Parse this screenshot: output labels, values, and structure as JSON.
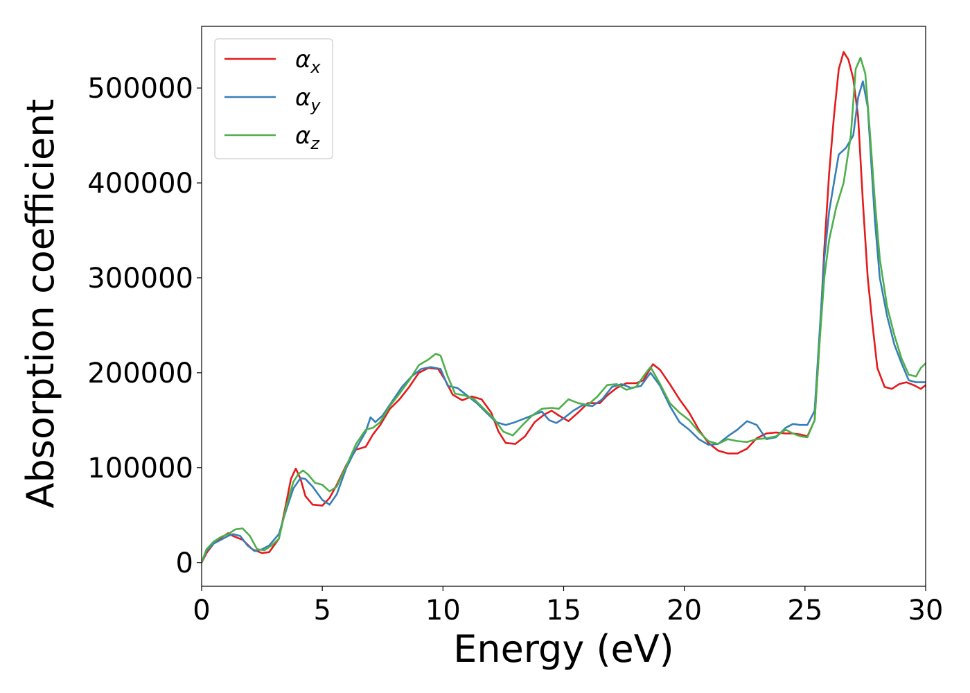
{
  "chart_data": {
    "type": "line",
    "title": "",
    "xlabel": "Energy (eV)",
    "ylabel": "Absorption coefficient",
    "xlim": [
      0,
      30
    ],
    "ylim": [
      -25000,
      565000
    ],
    "xticks": [
      0,
      5,
      10,
      15,
      20,
      25,
      30
    ],
    "yticks": [
      0,
      100000,
      200000,
      300000,
      400000,
      500000
    ],
    "grid": false,
    "legend_position": "top-left",
    "series": [
      {
        "name": "αx",
        "name_base": "α",
        "name_sub": "x",
        "color": "#e41a1c",
        "x": [
          0,
          0.2,
          0.5,
          0.8,
          1.1,
          1.3,
          1.7,
          2.1,
          2.5,
          2.8,
          3.2,
          3.5,
          3.7,
          3.9,
          4.1,
          4.3,
          4.6,
          5.0,
          5.3,
          5.6,
          6.0,
          6.4,
          6.8,
          7.1,
          7.4,
          7.8,
          8.2,
          8.6,
          9.0,
          9.4,
          9.8,
          10.1,
          10.4,
          10.8,
          11.2,
          11.6,
          12.0,
          12.3,
          12.6,
          13.0,
          13.4,
          13.8,
          14.2,
          14.5,
          14.8,
          15.2,
          15.6,
          16.0,
          16.5,
          16.8,
          17.2,
          17.6,
          18.0,
          18.3,
          18.7,
          19.0,
          19.4,
          19.8,
          20.2,
          20.6,
          21.0,
          21.4,
          21.8,
          22.2,
          22.6,
          23.0,
          23.4,
          23.8,
          24.2,
          24.5,
          24.8,
          25.1,
          25.4,
          25.6,
          25.8,
          26.0,
          26.2,
          26.4,
          26.6,
          26.8,
          27.0,
          27.2,
          27.4,
          27.6,
          27.8,
          28.0,
          28.3,
          28.6,
          28.9,
          29.2,
          29.5,
          29.8,
          30.0
        ],
        "values": [
          0,
          10000,
          20000,
          26000,
          31000,
          28000,
          24000,
          14000,
          10000,
          11000,
          25000,
          62000,
          88000,
          99000,
          88000,
          70000,
          61000,
          60000,
          68000,
          82000,
          103000,
          119000,
          122000,
          135000,
          145000,
          162000,
          172000,
          185000,
          200000,
          205000,
          204000,
          192000,
          177000,
          171000,
          175000,
          172000,
          158000,
          138000,
          126000,
          125000,
          133000,
          148000,
          156000,
          160000,
          155000,
          149000,
          158000,
          168000,
          168000,
          176000,
          184000,
          189000,
          189000,
          192000,
          209000,
          203000,
          188000,
          172000,
          158000,
          140000,
          126000,
          118000,
          115000,
          115000,
          120000,
          131000,
          136000,
          137000,
          136000,
          136000,
          135000,
          133000,
          150000,
          230000,
          330000,
          410000,
          470000,
          520000,
          538000,
          530000,
          510000,
          470000,
          380000,
          300000,
          250000,
          205000,
          185000,
          183000,
          188000,
          190000,
          187000,
          183000,
          187000
        ]
      },
      {
        "name": "αy",
        "name_base": "α",
        "name_sub": "y",
        "color": "#377eb8",
        "x": [
          0,
          0.2,
          0.5,
          0.8,
          1.1,
          1.3,
          1.6,
          1.9,
          2.2,
          2.5,
          2.8,
          3.2,
          3.5,
          3.8,
          4.1,
          4.3,
          4.6,
          5.0,
          5.3,
          5.6,
          6.0,
          6.4,
          6.8,
          7.0,
          7.2,
          7.5,
          7.9,
          8.3,
          8.7,
          9.1,
          9.5,
          9.9,
          10.2,
          10.6,
          11.0,
          11.4,
          11.8,
          12.2,
          12.6,
          13.0,
          13.4,
          13.8,
          14.1,
          14.4,
          14.7,
          15.0,
          15.4,
          15.8,
          16.2,
          16.6,
          17.0,
          17.4,
          17.8,
          18.2,
          18.6,
          19.0,
          19.4,
          19.8,
          20.2,
          20.6,
          21.0,
          21.4,
          21.8,
          22.2,
          22.6,
          23.0,
          23.4,
          23.8,
          24.2,
          24.5,
          24.8,
          25.1,
          25.4,
          25.6,
          25.8,
          26.0,
          26.2,
          26.4,
          26.7,
          27.0,
          27.2,
          27.4,
          27.6,
          27.75,
          27.9,
          28.1,
          28.4,
          28.7,
          29.0,
          29.3,
          29.6,
          30.0
        ],
        "values": [
          0,
          12000,
          20000,
          24000,
          28000,
          30000,
          28000,
          18000,
          12000,
          14000,
          18000,
          30000,
          55000,
          78000,
          89000,
          88000,
          80000,
          66000,
          61000,
          72000,
          100000,
          120000,
          138000,
          153000,
          148000,
          155000,
          170000,
          185000,
          196000,
          204000,
          206000,
          204000,
          186000,
          184000,
          176000,
          168000,
          158000,
          148000,
          145000,
          148000,
          152000,
          156000,
          159000,
          150000,
          147000,
          152000,
          160000,
          166000,
          165000,
          172000,
          185000,
          188000,
          184000,
          186000,
          200000,
          186000,
          165000,
          148000,
          140000,
          130000,
          124000,
          125000,
          133000,
          140000,
          149000,
          145000,
          130000,
          132000,
          142000,
          146000,
          145000,
          145000,
          160000,
          240000,
          320000,
          370000,
          400000,
          430000,
          437000,
          450000,
          490000,
          507000,
          480000,
          420000,
          360000,
          300000,
          260000,
          230000,
          210000,
          192000,
          190000,
          190000
        ]
      },
      {
        "name": "αz",
        "name_base": "α",
        "name_sub": "z",
        "color": "#4daf4a",
        "x": [
          0,
          0.2,
          0.5,
          0.8,
          1.1,
          1.4,
          1.7,
          2.0,
          2.3,
          2.6,
          2.9,
          3.2,
          3.5,
          3.8,
          4.0,
          4.2,
          4.4,
          4.7,
          5.0,
          5.3,
          5.6,
          6.0,
          6.4,
          6.8,
          7.1,
          7.4,
          7.8,
          8.2,
          8.6,
          9.0,
          9.4,
          9.7,
          9.9,
          10.2,
          10.5,
          10.9,
          11.3,
          11.7,
          12.1,
          12.5,
          12.9,
          13.3,
          13.7,
          14.1,
          14.5,
          14.8,
          15.2,
          15.6,
          16.0,
          16.4,
          16.8,
          17.2,
          17.6,
          18.0,
          18.3,
          18.6,
          19.0,
          19.4,
          19.8,
          20.2,
          20.6,
          21.0,
          21.4,
          21.8,
          22.2,
          22.6,
          23.0,
          23.4,
          23.8,
          24.2,
          24.5,
          24.8,
          25.1,
          25.4,
          25.6,
          25.8,
          26.0,
          26.3,
          26.6,
          26.9,
          27.1,
          27.3,
          27.5,
          27.7,
          27.9,
          28.1,
          28.4,
          28.7,
          29.0,
          29.3,
          29.6,
          29.8,
          30.0
        ],
        "values": [
          0,
          14000,
          22000,
          27000,
          30000,
          35000,
          36000,
          28000,
          14000,
          13000,
          18000,
          25000,
          58000,
          85000,
          93000,
          97000,
          93000,
          84000,
          82000,
          75000,
          80000,
          102000,
          125000,
          140000,
          142000,
          148000,
          165000,
          178000,
          192000,
          208000,
          214000,
          220000,
          218000,
          196000,
          178000,
          176000,
          172000,
          162000,
          152000,
          138000,
          134000,
          145000,
          155000,
          162000,
          163000,
          162000,
          172000,
          168000,
          166000,
          175000,
          187000,
          188000,
          182000,
          185000,
          196000,
          206000,
          188000,
          168000,
          158000,
          150000,
          138000,
          128000,
          125000,
          130000,
          128000,
          127000,
          130000,
          131000,
          133000,
          140000,
          136000,
          133000,
          132000,
          150000,
          230000,
          300000,
          340000,
          375000,
          400000,
          450000,
          520000,
          532000,
          515000,
          450000,
          380000,
          320000,
          270000,
          240000,
          215000,
          198000,
          196000,
          205000,
          210000
        ]
      }
    ]
  }
}
